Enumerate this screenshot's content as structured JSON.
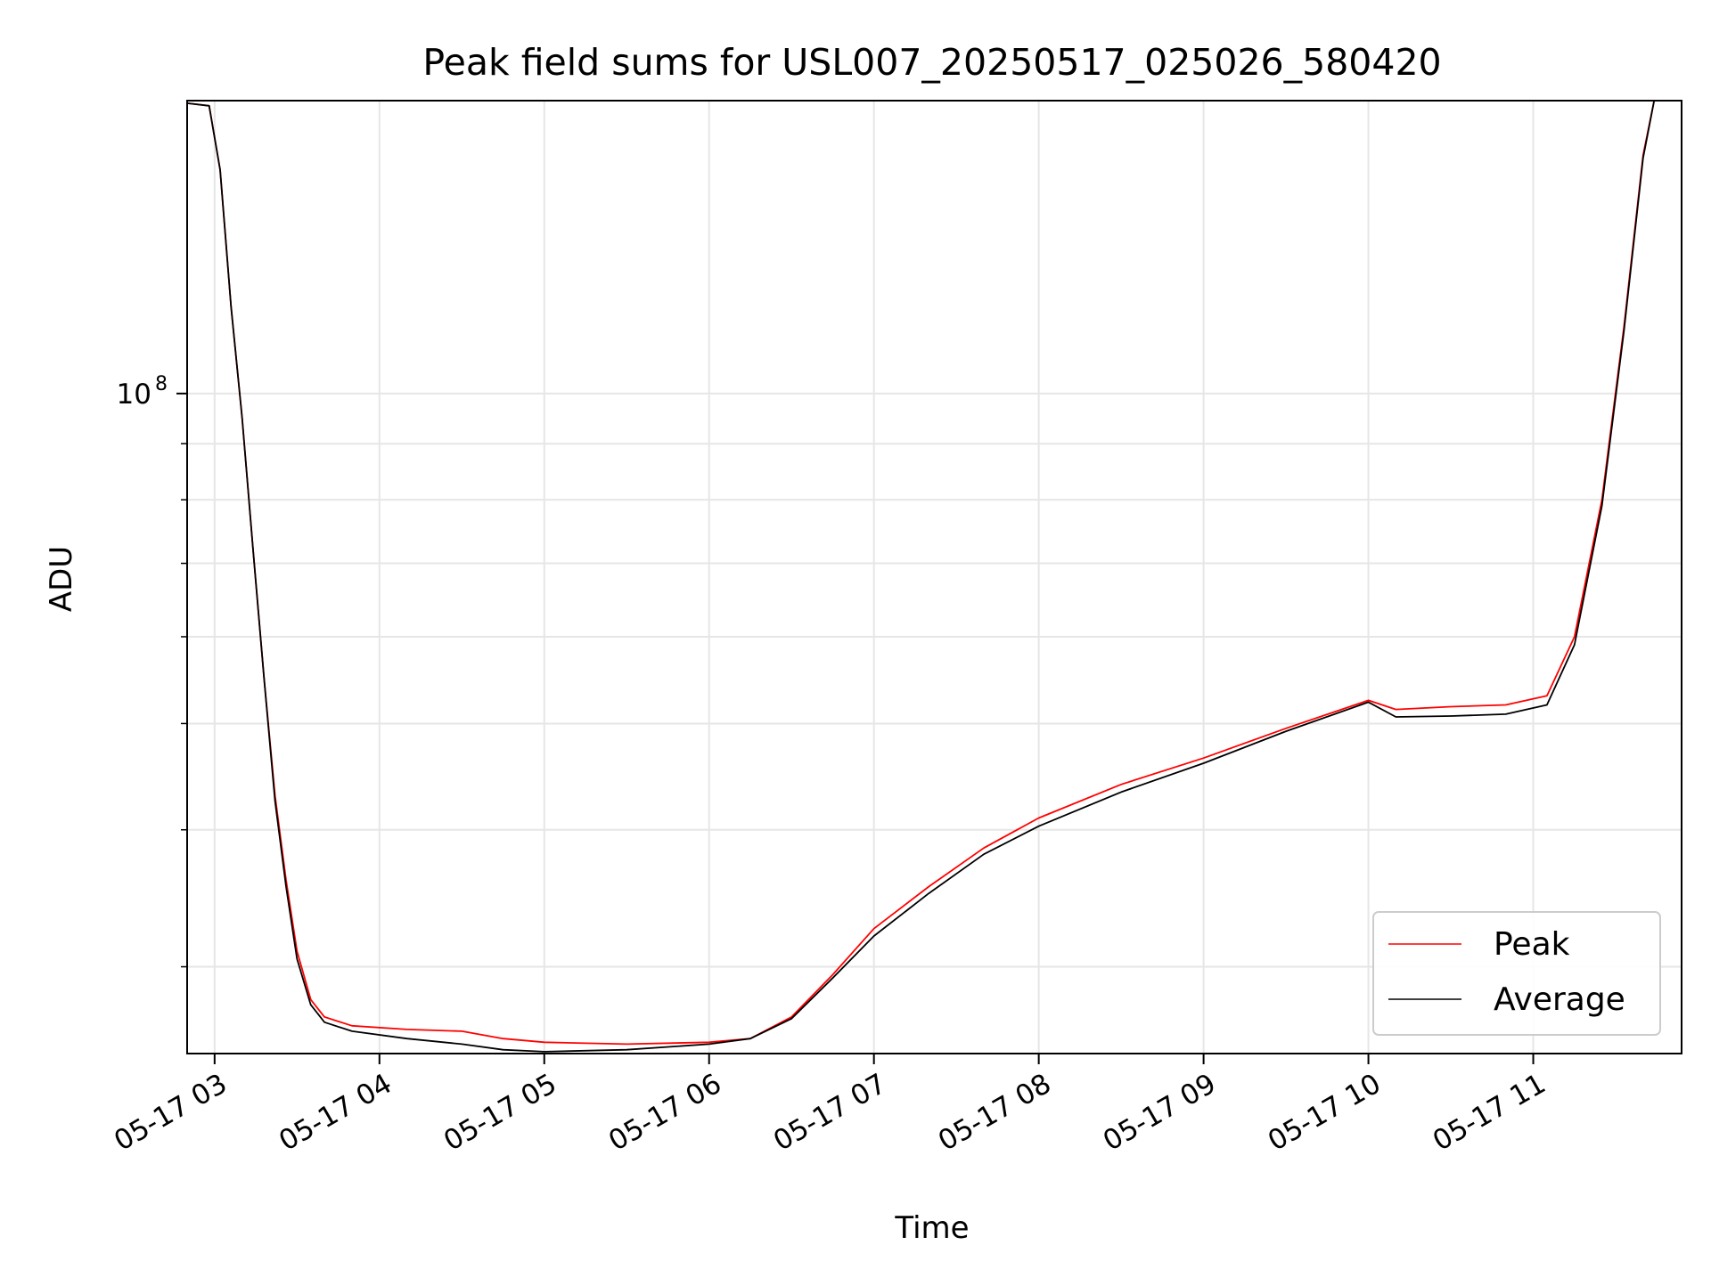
{
  "chart_data": {
    "type": "line",
    "title": "Peak field sums for USL007_20250517_025026_580420",
    "xlabel": "Time",
    "ylabel": "ADU",
    "yscale": "log",
    "x_range": [
      "2025-05-17 02:50",
      "2025-05-17 11:54"
    ],
    "ylim": [
      25000000,
      185000000
    ],
    "x_ticks": [
      "05-17 03",
      "05-17 04",
      "05-17 05",
      "05-17 06",
      "05-17 07",
      "05-17 08",
      "05-17 09",
      "05-17 10",
      "05-17 11"
    ],
    "x_tick_times": [
      "2025-05-17 03:00",
      "2025-05-17 04:00",
      "2025-05-17 05:00",
      "2025-05-17 06:00",
      "2025-05-17 07:00",
      "2025-05-17 08:00",
      "2025-05-17 09:00",
      "2025-05-17 10:00",
      "2025-05-17 11:00"
    ],
    "y_major_ticks": [
      {
        "value": 100000000,
        "base": "10",
        "exp": "8"
      }
    ],
    "y_minor_ticks": [
      30000000,
      40000000,
      50000000,
      60000000,
      70000000,
      80000000,
      90000000,
      200000000
    ],
    "grid": true,
    "legend_position": "lower-right",
    "series": [
      {
        "name": "Peak",
        "color": "#ff0000",
        "x": [
          "2025-05-17 02:50",
          "2025-05-17 02:58",
          "2025-05-17 03:02",
          "2025-05-17 03:06",
          "2025-05-17 03:10",
          "2025-05-17 03:14",
          "2025-05-17 03:18",
          "2025-05-17 03:22",
          "2025-05-17 03:26",
          "2025-05-17 03:30",
          "2025-05-17 03:35",
          "2025-05-17 03:40",
          "2025-05-17 03:50",
          "2025-05-17 04:10",
          "2025-05-17 04:30",
          "2025-05-17 04:45",
          "2025-05-17 05:00",
          "2025-05-17 05:30",
          "2025-05-17 06:00",
          "2025-05-17 06:15",
          "2025-05-17 06:30",
          "2025-05-17 06:45",
          "2025-05-17 07:00",
          "2025-05-17 07:20",
          "2025-05-17 07:40",
          "2025-05-17 08:00",
          "2025-05-17 08:30",
          "2025-05-17 09:00",
          "2025-05-17 09:30",
          "2025-05-17 10:00",
          "2025-05-17 10:10",
          "2025-05-17 10:30",
          "2025-05-17 10:50",
          "2025-05-17 11:05",
          "2025-05-17 11:15",
          "2025-05-17 11:25",
          "2025-05-17 11:33",
          "2025-05-17 11:40",
          "2025-05-17 11:44"
        ],
        "y": [
          184000000,
          183000000,
          160000000,
          120000000,
          95000000,
          72000000,
          55000000,
          43000000,
          36000000,
          31000000,
          28000000,
          27000000,
          26500000,
          26300000,
          26200000,
          25800000,
          25600000,
          25500000,
          25600000,
          25800000,
          27000000,
          29500000,
          32500000,
          35500000,
          38500000,
          41000000,
          44000000,
          46500000,
          49500000,
          52500000,
          51500000,
          51800000,
          52000000,
          53000000,
          60000000,
          80000000,
          115000000,
          165000000,
          185000000
        ]
      },
      {
        "name": "Average",
        "color": "#000000",
        "x": [
          "2025-05-17 02:50",
          "2025-05-17 02:58",
          "2025-05-17 03:02",
          "2025-05-17 03:06",
          "2025-05-17 03:10",
          "2025-05-17 03:14",
          "2025-05-17 03:18",
          "2025-05-17 03:22",
          "2025-05-17 03:26",
          "2025-05-17 03:30",
          "2025-05-17 03:35",
          "2025-05-17 03:40",
          "2025-05-17 03:50",
          "2025-05-17 04:10",
          "2025-05-17 04:30",
          "2025-05-17 04:45",
          "2025-05-17 05:00",
          "2025-05-17 05:30",
          "2025-05-17 06:00",
          "2025-05-17 06:15",
          "2025-05-17 06:30",
          "2025-05-17 06:45",
          "2025-05-17 07:00",
          "2025-05-17 07:20",
          "2025-05-17 07:40",
          "2025-05-17 08:00",
          "2025-05-17 08:30",
          "2025-05-17 09:00",
          "2025-05-17 09:30",
          "2025-05-17 10:00",
          "2025-05-17 10:10",
          "2025-05-17 10:30",
          "2025-05-17 10:50",
          "2025-05-17 11:05",
          "2025-05-17 11:15",
          "2025-05-17 11:25",
          "2025-05-17 11:33",
          "2025-05-17 11:40",
          "2025-05-17 11:44"
        ],
        "y": [
          184000000,
          183000000,
          160000000,
          120000000,
          95000000,
          72000000,
          55000000,
          42500000,
          35500000,
          30500000,
          27700000,
          26700000,
          26200000,
          25800000,
          25500000,
          25200000,
          25100000,
          25200000,
          25500000,
          25800000,
          26900000,
          29300000,
          32000000,
          35000000,
          38000000,
          40300000,
          43300000,
          46000000,
          49200000,
          52300000,
          50700000,
          50800000,
          51000000,
          52000000,
          59000000,
          79000000,
          114000000,
          164000000,
          185000000
        ]
      }
    ]
  }
}
